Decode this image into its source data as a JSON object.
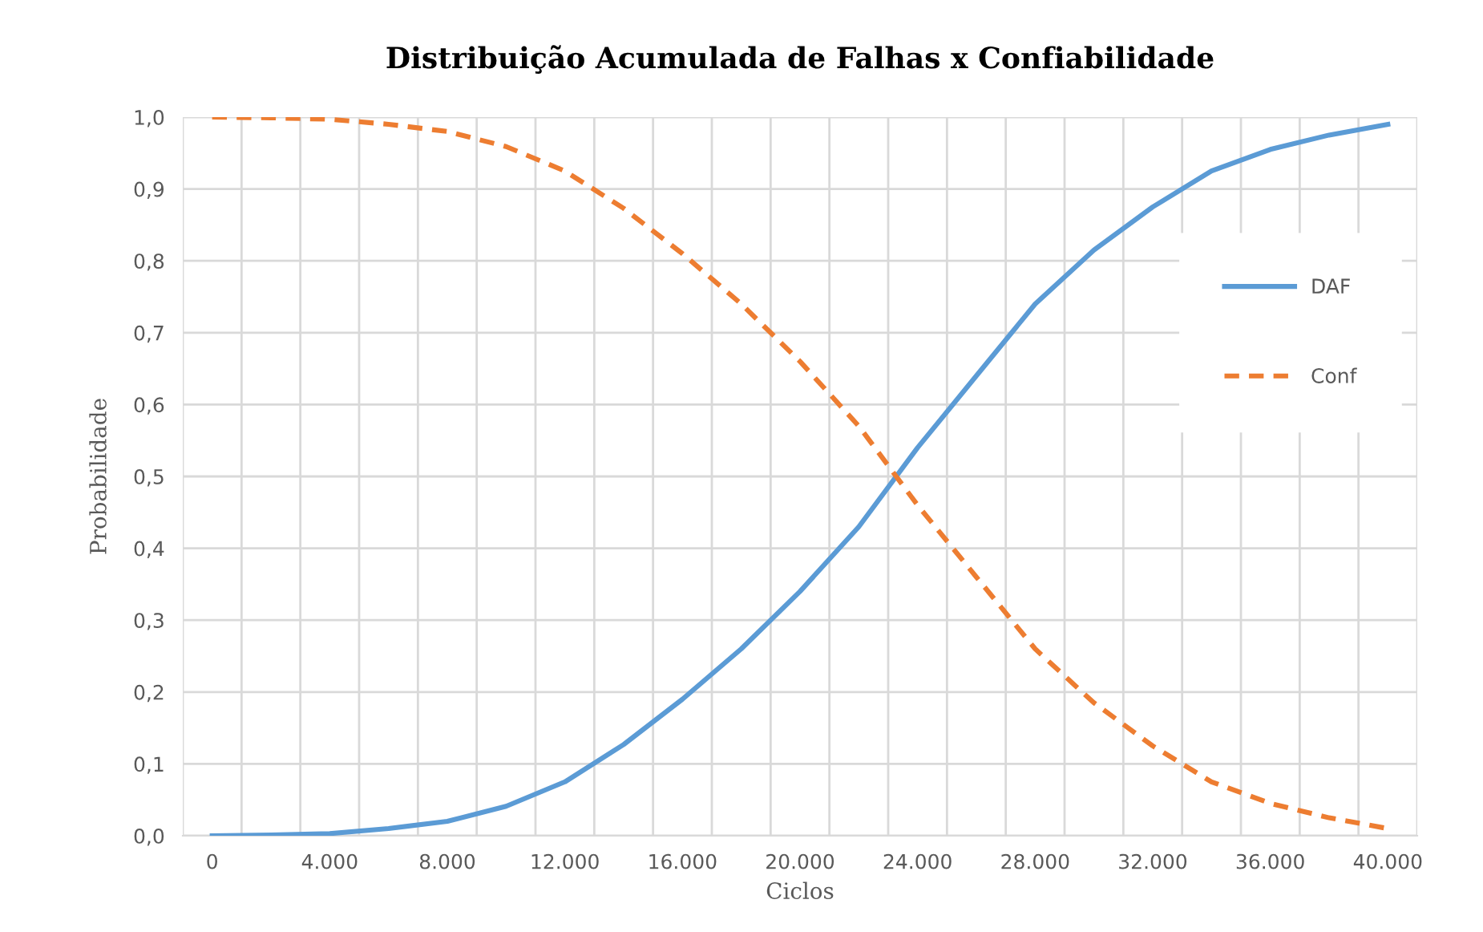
{
  "chart_data": {
    "type": "line",
    "title": "Distribuição Acumulada de Falhas x Confiabilidade",
    "xlabel": "Ciclos",
    "ylabel": "Probabilidade",
    "categories": [
      "0",
      null,
      "4.000",
      null,
      "8.000",
      null,
      "12.000",
      null,
      "16.000",
      null,
      "20.000",
      null,
      "24.000",
      null,
      "28.000",
      null,
      "32.000",
      null,
      "36.000",
      null,
      "40.000"
    ],
    "series": [
      {
        "name": "DAF",
        "color": "#5b9bd5",
        "line_style": "solid",
        "values": [
          0.0,
          0.001,
          0.003,
          0.01,
          0.02,
          0.041,
          0.075,
          0.127,
          0.19,
          0.26,
          0.34,
          0.43,
          0.54,
          0.64,
          0.74,
          0.815,
          0.875,
          0.925,
          0.955,
          0.975,
          0.99
        ]
      },
      {
        "name": "Conf",
        "color": "#ed7d31",
        "line_style": "dashed",
        "values": [
          1.0,
          0.999,
          0.997,
          0.99,
          0.98,
          0.959,
          0.925,
          0.873,
          0.81,
          0.74,
          0.66,
          0.57,
          0.46,
          0.36,
          0.26,
          0.185,
          0.125,
          0.075,
          0.045,
          0.025,
          0.01
        ]
      }
    ],
    "ylim": [
      0,
      1.0
    ],
    "yticks": [
      {
        "value": 0,
        "label": "0,0"
      },
      {
        "value": 0.1,
        "label": "0,1"
      },
      {
        "value": 0.2,
        "label": "0,2"
      },
      {
        "value": 0.3,
        "label": "0,3"
      },
      {
        "value": 0.4,
        "label": "0,4"
      },
      {
        "value": 0.5,
        "label": "0,5"
      },
      {
        "value": 0.6,
        "label": "0,6"
      },
      {
        "value": 0.7,
        "label": "0,7"
      },
      {
        "value": 0.8,
        "label": "0,8"
      },
      {
        "value": 0.9,
        "label": "0,9"
      },
      {
        "value": 1.0,
        "label": "1,0"
      }
    ],
    "grid": true,
    "legend": "right",
    "marker": "none"
  }
}
